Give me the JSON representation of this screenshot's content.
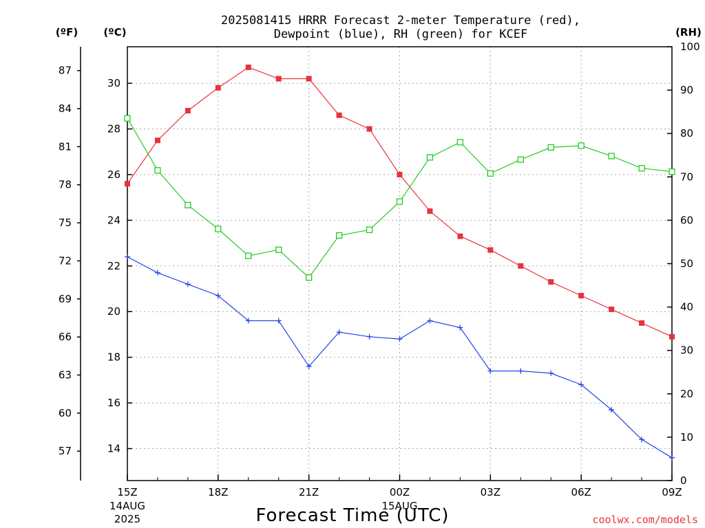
{
  "chart_data": {
    "type": "line",
    "title_lines": [
      "2025081415 HRRR Forecast 2-meter Temperature (red),",
      "Dewpoint (blue), RH (green) for KCEF"
    ],
    "xlabel": "Forecast Time (UTC)",
    "credit": "coolwx.com/models",
    "left_axis_f": {
      "label": "(ºF)",
      "ticks": [
        57,
        60,
        63,
        66,
        69,
        72,
        75,
        78,
        81,
        84,
        87
      ]
    },
    "left_axis_c": {
      "label": "(ºC)",
      "ticks": [
        14,
        16,
        18,
        20,
        22,
        24,
        26,
        28,
        30
      ],
      "ylim": [
        12.6,
        31.6
      ]
    },
    "right_axis_rh": {
      "label": "(RH)",
      "ticks": [
        0,
        10,
        20,
        30,
        40,
        50,
        60,
        70,
        80,
        90,
        100
      ],
      "ylim": [
        0,
        100
      ]
    },
    "x_ticks": [
      {
        "index": 0,
        "label": "15Z",
        "sub": [
          "14AUG",
          "2025"
        ]
      },
      {
        "index": 3,
        "label": "18Z",
        "sub": []
      },
      {
        "index": 6,
        "label": "21Z",
        "sub": []
      },
      {
        "index": 9,
        "label": "00Z",
        "sub": [
          "15AUG"
        ]
      },
      {
        "index": 12,
        "label": "03Z",
        "sub": []
      },
      {
        "index": 15,
        "label": "06Z",
        "sub": []
      },
      {
        "index": 18,
        "label": "09Z",
        "sub": []
      }
    ],
    "x_count": 19,
    "grid": true,
    "series": [
      {
        "name": "Temperature",
        "axis": "C",
        "color": "#e8323c",
        "marker": "filled-square",
        "values": [
          25.6,
          27.5,
          28.8,
          29.8,
          30.7,
          30.2,
          30.2,
          28.6,
          28.0,
          26.0,
          24.4,
          23.3,
          22.7,
          22.0,
          21.3,
          20.7,
          20.1,
          19.5,
          18.9
        ]
      },
      {
        "name": "Dewpoint",
        "axis": "C",
        "color": "#2244e6",
        "marker": "plus",
        "values": [
          22.4,
          21.7,
          21.2,
          20.7,
          19.6,
          19.6,
          17.6,
          19.1,
          18.9,
          18.8,
          19.6,
          19.3,
          17.4,
          17.4,
          17.3,
          16.8,
          15.7,
          14.4,
          13.6
        ]
      },
      {
        "name": "RH",
        "axis": "RH",
        "color": "#22cc22",
        "marker": "open-square",
        "values": [
          83.5,
          71.5,
          63.5,
          58.0,
          51.8,
          53.2,
          46.8,
          56.5,
          57.8,
          64.3,
          74.5,
          78.0,
          70.8,
          74.0,
          76.8,
          77.2,
          74.8,
          72.0,
          71.2
        ]
      }
    ]
  }
}
